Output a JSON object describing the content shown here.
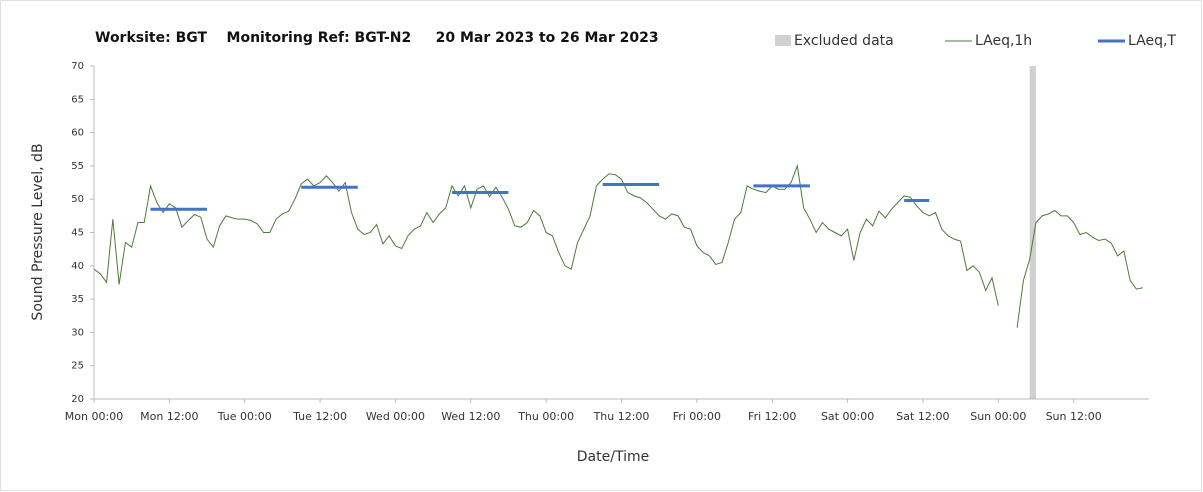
{
  "chart_data": {
    "type": "line",
    "title": "Worksite: BGT    Monitoring Ref: BGT-N2     20 Mar 2023 to 26 Mar 2023",
    "xlabel": "Date/Time",
    "ylabel": "Sound Pressure Level, dB",
    "xlim": [
      0,
      168
    ],
    "ylim": [
      20,
      70
    ],
    "xticks": [
      {
        "value": 0,
        "label": "Mon 00:00"
      },
      {
        "value": 12,
        "label": "Mon 12:00"
      },
      {
        "value": 24,
        "label": "Tue 00:00"
      },
      {
        "value": 36,
        "label": "Tue 12:00"
      },
      {
        "value": 48,
        "label": "Wed 00:00"
      },
      {
        "value": 60,
        "label": "Wed 12:00"
      },
      {
        "value": 72,
        "label": "Thu 00:00"
      },
      {
        "value": 84,
        "label": "Thu 12:00"
      },
      {
        "value": 96,
        "label": "Fri 00:00"
      },
      {
        "value": 108,
        "label": "Fri 12:00"
      },
      {
        "value": 120,
        "label": "Sat 00:00"
      },
      {
        "value": 132,
        "label": "Sat 12:00"
      },
      {
        "value": 144,
        "label": "Sun 00:00"
      },
      {
        "value": 156,
        "label": "Sun 12:00"
      }
    ],
    "yticks": [
      20,
      25,
      30,
      35,
      40,
      45,
      50,
      55,
      60,
      65,
      70
    ],
    "x": [
      0,
      1,
      2,
      3,
      4,
      5,
      6,
      7,
      8,
      9,
      10,
      11,
      12,
      13,
      14,
      15,
      16,
      17,
      18,
      19,
      20,
      21,
      22,
      23,
      24,
      25,
      26,
      27,
      28,
      29,
      30,
      31,
      32,
      33,
      34,
      35,
      36,
      37,
      38,
      39,
      40,
      41,
      42,
      43,
      44,
      45,
      46,
      47,
      48,
      49,
      50,
      51,
      52,
      53,
      54,
      55,
      56,
      57,
      58,
      59,
      60,
      61,
      62,
      63,
      64,
      65,
      66,
      67,
      68,
      69,
      70,
      71,
      72,
      73,
      74,
      75,
      76,
      77,
      78,
      79,
      80,
      81,
      82,
      83,
      84,
      85,
      86,
      87,
      88,
      89,
      90,
      91,
      92,
      93,
      94,
      95,
      96,
      97,
      98,
      99,
      100,
      101,
      102,
      103,
      104,
      105,
      106,
      107,
      108,
      109,
      110,
      111,
      112,
      113,
      114,
      115,
      116,
      117,
      118,
      119,
      120,
      121,
      122,
      123,
      124,
      125,
      126,
      127,
      128,
      129,
      130,
      131,
      132,
      133,
      134,
      135,
      136,
      137,
      138,
      139,
      140,
      141,
      142,
      143,
      144,
      145,
      146,
      147,
      148,
      149,
      150,
      151,
      152,
      153,
      154,
      155,
      156,
      157,
      158,
      159,
      160,
      161,
      162,
      163,
      164,
      165,
      166,
      167
    ],
    "series": [
      {
        "name": "LAeq,1h",
        "color": "#4e7a3a",
        "values": [
          39.5,
          38.8,
          37.5,
          47,
          37.2,
          43.5,
          42.8,
          46.5,
          46.5,
          52,
          49.5,
          48,
          49.3,
          48.7,
          45.8,
          46.8,
          47.7,
          47.3,
          44,
          42.8,
          46,
          47.5,
          47.2,
          47,
          47,
          46.8,
          46.3,
          45,
          45,
          47,
          47.8,
          48.2,
          50,
          52.3,
          53,
          52,
          52.5,
          53.5,
          52.5,
          51.2,
          52.5,
          48,
          45.5,
          44.7,
          45,
          46.2,
          43.3,
          44.5,
          43,
          42.6,
          44.5,
          45.5,
          46,
          48,
          46.5,
          47.8,
          48.7,
          52,
          50.5,
          52,
          48.7,
          51.5,
          52,
          50.4,
          51.8,
          50.3,
          48.5,
          46,
          45.8,
          46.5,
          48.3,
          47.5,
          45,
          44.5,
          42,
          40,
          39.5,
          43.5,
          45.5,
          47.5,
          52,
          53,
          53.8,
          53.7,
          53,
          51,
          50.5,
          50.2,
          49.5,
          48.5,
          47.5,
          47,
          47.8,
          47.5,
          45.8,
          45.5,
          43,
          42,
          41.5,
          40.2,
          40.5,
          43.5,
          47,
          48,
          52,
          51.5,
          51.2,
          51,
          52,
          51.5,
          51.5,
          52.5,
          55,
          48.7,
          47,
          45,
          46.5,
          45.5,
          45,
          44.5,
          45.5,
          40.8,
          45,
          47,
          46,
          48.2,
          47.2,
          48.5,
          49.5,
          50.5,
          50.3,
          49,
          48,
          47.5,
          48,
          45.5,
          44.5,
          44,
          43.7,
          39.3,
          40,
          39,
          36.3,
          38.2,
          34,
          null,
          null,
          30.7,
          37.8,
          41,
          46.5,
          47.5,
          47.8,
          48.3,
          47.5,
          47.5,
          46.5,
          44.7,
          45,
          44.3,
          43.8,
          44,
          43.4,
          41.5,
          42.2,
          37.8,
          36.5,
          36.7
        ]
      },
      {
        "name": "LAeq,T",
        "color": "#4472c4",
        "segments": [
          {
            "start": 9,
            "end": 18,
            "value": 48.5
          },
          {
            "start": 33,
            "end": 42,
            "value": 51.8
          },
          {
            "start": 57,
            "end": 66,
            "value": 51
          },
          {
            "start": 81,
            "end": 90,
            "value": 52.2
          },
          {
            "start": 105,
            "end": 114,
            "value": 52
          },
          {
            "start": 129,
            "end": 133,
            "value": 49.8
          }
        ]
      }
    ],
    "excluded": {
      "name": "Excluded data",
      "color": "#d0d0d0",
      "start": 149,
      "end": 150
    },
    "grid": false
  }
}
